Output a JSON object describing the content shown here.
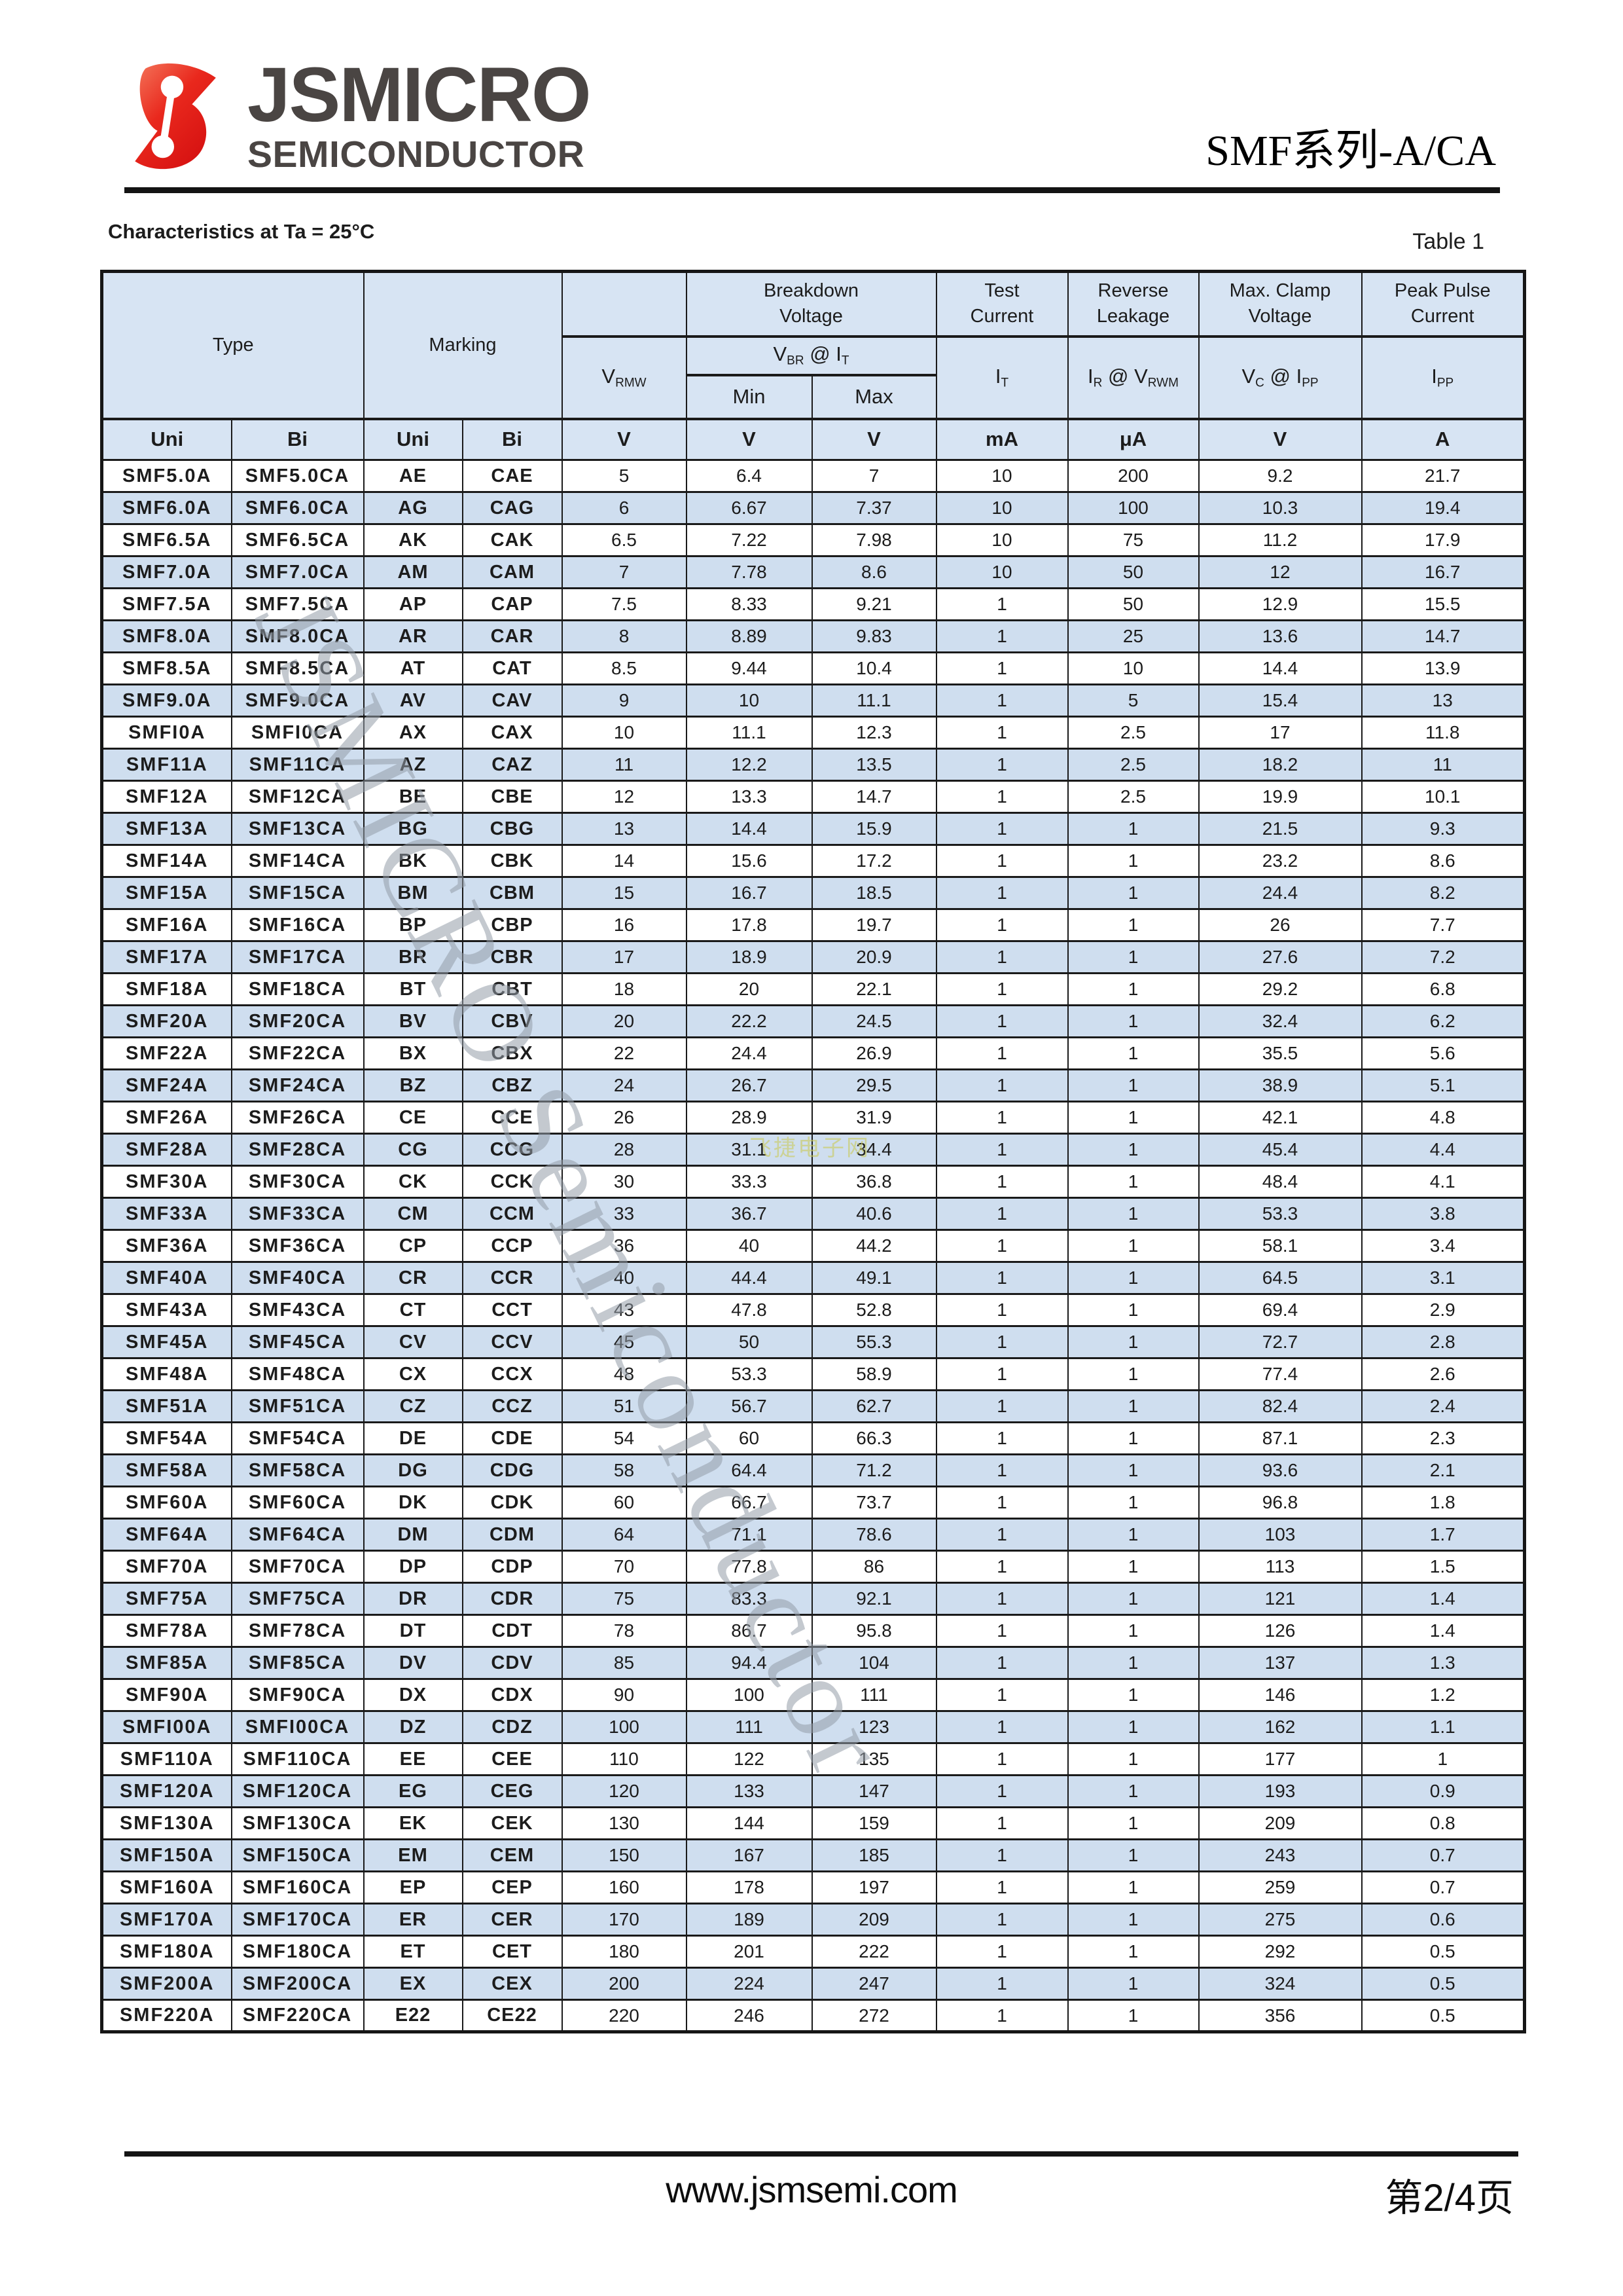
{
  "header": {
    "logo_title": "JSMICRO",
    "logo_subtitle": "SEMICONDUCTOR",
    "doc_title": "SMF系列-A/CA"
  },
  "section": {
    "heading": "Characteristics at Ta = 25°C",
    "table_label": "Table 1"
  },
  "table": {
    "groups": {
      "type": "Type",
      "marking": "Marking",
      "breakdown": "Breakdown\nVoltage",
      "test": "Test\nCurrent",
      "reverse": "Reverse\nLeakage",
      "clamp": "Max. Clamp\nVoltage",
      "peak": "Peak Pulse\nCurrent"
    },
    "sym": {
      "vrmw": {
        "base": "V",
        "sub": "RMW"
      },
      "vbr": {
        "b1": "V",
        "s1": "BR",
        "mid": " @ ",
        "b2": "I",
        "s2": "T"
      },
      "min": "Min",
      "max": "Max",
      "it": {
        "base": "I",
        "sub": "T"
      },
      "ir": {
        "b1": "I",
        "s1": "R",
        "mid": " @ ",
        "b2": "V",
        "s2": "RWM"
      },
      "vc": {
        "b1": "V",
        "s1": "C",
        "mid": " @ ",
        "b2": "I",
        "s2": "PP"
      },
      "ipp": {
        "base": "I",
        "sub": "PP"
      }
    },
    "units": [
      "Uni",
      "Bi",
      "Uni",
      "Bi",
      "V",
      "V",
      "V",
      "mA",
      "μA",
      "V",
      "A"
    ],
    "rows": [
      [
        "SMF5.0A",
        "SMF5.0CA",
        "AE",
        "CAE",
        "5",
        "6.4",
        "7",
        "10",
        "200",
        "9.2",
        "21.7"
      ],
      [
        "SMF6.0A",
        "SMF6.0CA",
        "AG",
        "CAG",
        "6",
        "6.67",
        "7.37",
        "10",
        "100",
        "10.3",
        "19.4"
      ],
      [
        "SMF6.5A",
        "SMF6.5CA",
        "AK",
        "CAK",
        "6.5",
        "7.22",
        "7.98",
        "10",
        "75",
        "11.2",
        "17.9"
      ],
      [
        "SMF7.0A",
        "SMF7.0CA",
        "AM",
        "CAM",
        "7",
        "7.78",
        "8.6",
        "10",
        "50",
        "12",
        "16.7"
      ],
      [
        "SMF7.5A",
        "SMF7.5CA",
        "AP",
        "CAP",
        "7.5",
        "8.33",
        "9.21",
        "1",
        "50",
        "12.9",
        "15.5"
      ],
      [
        "SMF8.0A",
        "SMF8.0CA",
        "AR",
        "CAR",
        "8",
        "8.89",
        "9.83",
        "1",
        "25",
        "13.6",
        "14.7"
      ],
      [
        "SMF8.5A",
        "SMF8.5CA",
        "AT",
        "CAT",
        "8.5",
        "9.44",
        "10.4",
        "1",
        "10",
        "14.4",
        "13.9"
      ],
      [
        "SMF9.0A",
        "SMF9.0CA",
        "AV",
        "CAV",
        "9",
        "10",
        "11.1",
        "1",
        "5",
        "15.4",
        "13"
      ],
      [
        "SMFI0A",
        "SMFI0CA",
        "AX",
        "CAX",
        "10",
        "11.1",
        "12.3",
        "1",
        "2.5",
        "17",
        "11.8"
      ],
      [
        "SMF11A",
        "SMF11CA",
        "AZ",
        "CAZ",
        "11",
        "12.2",
        "13.5",
        "1",
        "2.5",
        "18.2",
        "11"
      ],
      [
        "SMF12A",
        "SMF12CA",
        "BE",
        "CBE",
        "12",
        "13.3",
        "14.7",
        "1",
        "2.5",
        "19.9",
        "10.1"
      ],
      [
        "SMF13A",
        "SMF13CA",
        "BG",
        "CBG",
        "13",
        "14.4",
        "15.9",
        "1",
        "1",
        "21.5",
        "9.3"
      ],
      [
        "SMF14A",
        "SMF14CA",
        "BK",
        "CBK",
        "14",
        "15.6",
        "17.2",
        "1",
        "1",
        "23.2",
        "8.6"
      ],
      [
        "SMF15A",
        "SMF15CA",
        "BM",
        "CBM",
        "15",
        "16.7",
        "18.5",
        "1",
        "1",
        "24.4",
        "8.2"
      ],
      [
        "SMF16A",
        "SMF16CA",
        "BP",
        "CBP",
        "16",
        "17.8",
        "19.7",
        "1",
        "1",
        "26",
        "7.7"
      ],
      [
        "SMF17A",
        "SMF17CA",
        "BR",
        "CBR",
        "17",
        "18.9",
        "20.9",
        "1",
        "1",
        "27.6",
        "7.2"
      ],
      [
        "SMF18A",
        "SMF18CA",
        "BT",
        "CBT",
        "18",
        "20",
        "22.1",
        "1",
        "1",
        "29.2",
        "6.8"
      ],
      [
        "SMF20A",
        "SMF20CA",
        "BV",
        "CBV",
        "20",
        "22.2",
        "24.5",
        "1",
        "1",
        "32.4",
        "6.2"
      ],
      [
        "SMF22A",
        "SMF22CA",
        "BX",
        "CBX",
        "22",
        "24.4",
        "26.9",
        "1",
        "1",
        "35.5",
        "5.6"
      ],
      [
        "SMF24A",
        "SMF24CA",
        "BZ",
        "CBZ",
        "24",
        "26.7",
        "29.5",
        "1",
        "1",
        "38.9",
        "5.1"
      ],
      [
        "SMF26A",
        "SMF26CA",
        "CE",
        "CCE",
        "26",
        "28.9",
        "31.9",
        "1",
        "1",
        "42.1",
        "4.8"
      ],
      [
        "SMF28A",
        "SMF28CA",
        "CG",
        "CCG",
        "28",
        "31.1",
        "34.4",
        "1",
        "1",
        "45.4",
        "4.4"
      ],
      [
        "SMF30A",
        "SMF30CA",
        "CK",
        "CCK",
        "30",
        "33.3",
        "36.8",
        "1",
        "1",
        "48.4",
        "4.1"
      ],
      [
        "SMF33A",
        "SMF33CA",
        "CM",
        "CCM",
        "33",
        "36.7",
        "40.6",
        "1",
        "1",
        "53.3",
        "3.8"
      ],
      [
        "SMF36A",
        "SMF36CA",
        "CP",
        "CCP",
        "36",
        "40",
        "44.2",
        "1",
        "1",
        "58.1",
        "3.4"
      ],
      [
        "SMF40A",
        "SMF40CA",
        "CR",
        "CCR",
        "40",
        "44.4",
        "49.1",
        "1",
        "1",
        "64.5",
        "3.1"
      ],
      [
        "SMF43A",
        "SMF43CA",
        "CT",
        "CCT",
        "43",
        "47.8",
        "52.8",
        "1",
        "1",
        "69.4",
        "2.9"
      ],
      [
        "SMF45A",
        "SMF45CA",
        "CV",
        "CCV",
        "45",
        "50",
        "55.3",
        "1",
        "1",
        "72.7",
        "2.8"
      ],
      [
        "SMF48A",
        "SMF48CA",
        "CX",
        "CCX",
        "48",
        "53.3",
        "58.9",
        "1",
        "1",
        "77.4",
        "2.6"
      ],
      [
        "SMF51A",
        "SMF51CA",
        "CZ",
        "CCZ",
        "51",
        "56.7",
        "62.7",
        "1",
        "1",
        "82.4",
        "2.4"
      ],
      [
        "SMF54A",
        "SMF54CA",
        "DE",
        "CDE",
        "54",
        "60",
        "66.3",
        "1",
        "1",
        "87.1",
        "2.3"
      ],
      [
        "SMF58A",
        "SMF58CA",
        "DG",
        "CDG",
        "58",
        "64.4",
        "71.2",
        "1",
        "1",
        "93.6",
        "2.1"
      ],
      [
        "SMF60A",
        "SMF60CA",
        "DK",
        "CDK",
        "60",
        "66.7",
        "73.7",
        "1",
        "1",
        "96.8",
        "1.8"
      ],
      [
        "SMF64A",
        "SMF64CA",
        "DM",
        "CDM",
        "64",
        "71.1",
        "78.6",
        "1",
        "1",
        "103",
        "1.7"
      ],
      [
        "SMF70A",
        "SMF70CA",
        "DP",
        "CDP",
        "70",
        "77.8",
        "86",
        "1",
        "1",
        "113",
        "1.5"
      ],
      [
        "SMF75A",
        "SMF75CA",
        "DR",
        "CDR",
        "75",
        "83.3",
        "92.1",
        "1",
        "1",
        "121",
        "1.4"
      ],
      [
        "SMF78A",
        "SMF78CA",
        "DT",
        "CDT",
        "78",
        "86.7",
        "95.8",
        "1",
        "1",
        "126",
        "1.4"
      ],
      [
        "SMF85A",
        "SMF85CA",
        "DV",
        "CDV",
        "85",
        "94.4",
        "104",
        "1",
        "1",
        "137",
        "1.3"
      ],
      [
        "SMF90A",
        "SMF90CA",
        "DX",
        "CDX",
        "90",
        "100",
        "111",
        "1",
        "1",
        "146",
        "1.2"
      ],
      [
        "SMFI00A",
        "SMFI00CA",
        "DZ",
        "CDZ",
        "100",
        "111",
        "123",
        "1",
        "1",
        "162",
        "1.1"
      ],
      [
        "SMF110A",
        "SMF110CA",
        "EE",
        "CEE",
        "110",
        "122",
        "135",
        "1",
        "1",
        "177",
        "1"
      ],
      [
        "SMF120A",
        "SMF120CA",
        "EG",
        "CEG",
        "120",
        "133",
        "147",
        "1",
        "1",
        "193",
        "0.9"
      ],
      [
        "SMF130A",
        "SMF130CA",
        "EK",
        "CEK",
        "130",
        "144",
        "159",
        "1",
        "1",
        "209",
        "0.8"
      ],
      [
        "SMF150A",
        "SMF150CA",
        "EM",
        "CEM",
        "150",
        "167",
        "185",
        "1",
        "1",
        "243",
        "0.7"
      ],
      [
        "SMF160A",
        "SMF160CA",
        "EP",
        "CEP",
        "160",
        "178",
        "197",
        "1",
        "1",
        "259",
        "0.7"
      ],
      [
        "SMF170A",
        "SMF170CA",
        "ER",
        "CER",
        "170",
        "189",
        "209",
        "1",
        "1",
        "275",
        "0.6"
      ],
      [
        "SMF180A",
        "SMF180CA",
        "ET",
        "CET",
        "180",
        "201",
        "222",
        "1",
        "1",
        "292",
        "0.5"
      ],
      [
        "SMF200A",
        "SMF200CA",
        "EX",
        "CEX",
        "200",
        "224",
        "247",
        "1",
        "1",
        "324",
        "0.5"
      ],
      [
        "SMF220A",
        "SMF220CA",
        "E22",
        "CE22",
        "220",
        "246",
        "272",
        "1",
        "1",
        "356",
        "0.5"
      ]
    ]
  },
  "watermark": {
    "diagonal": "JSMICRO Semiconductor",
    "stamp": "飞捷电子网"
  },
  "footer": {
    "website": "www.jsmsemi.com",
    "page": "第2/4页"
  },
  "colors": {
    "header_blue": "#d7e4f3",
    "row_blue": "#cfdeef",
    "border": "#1a1a1a",
    "logo_red": "#e01812",
    "logo_gray": "#4a4543"
  }
}
